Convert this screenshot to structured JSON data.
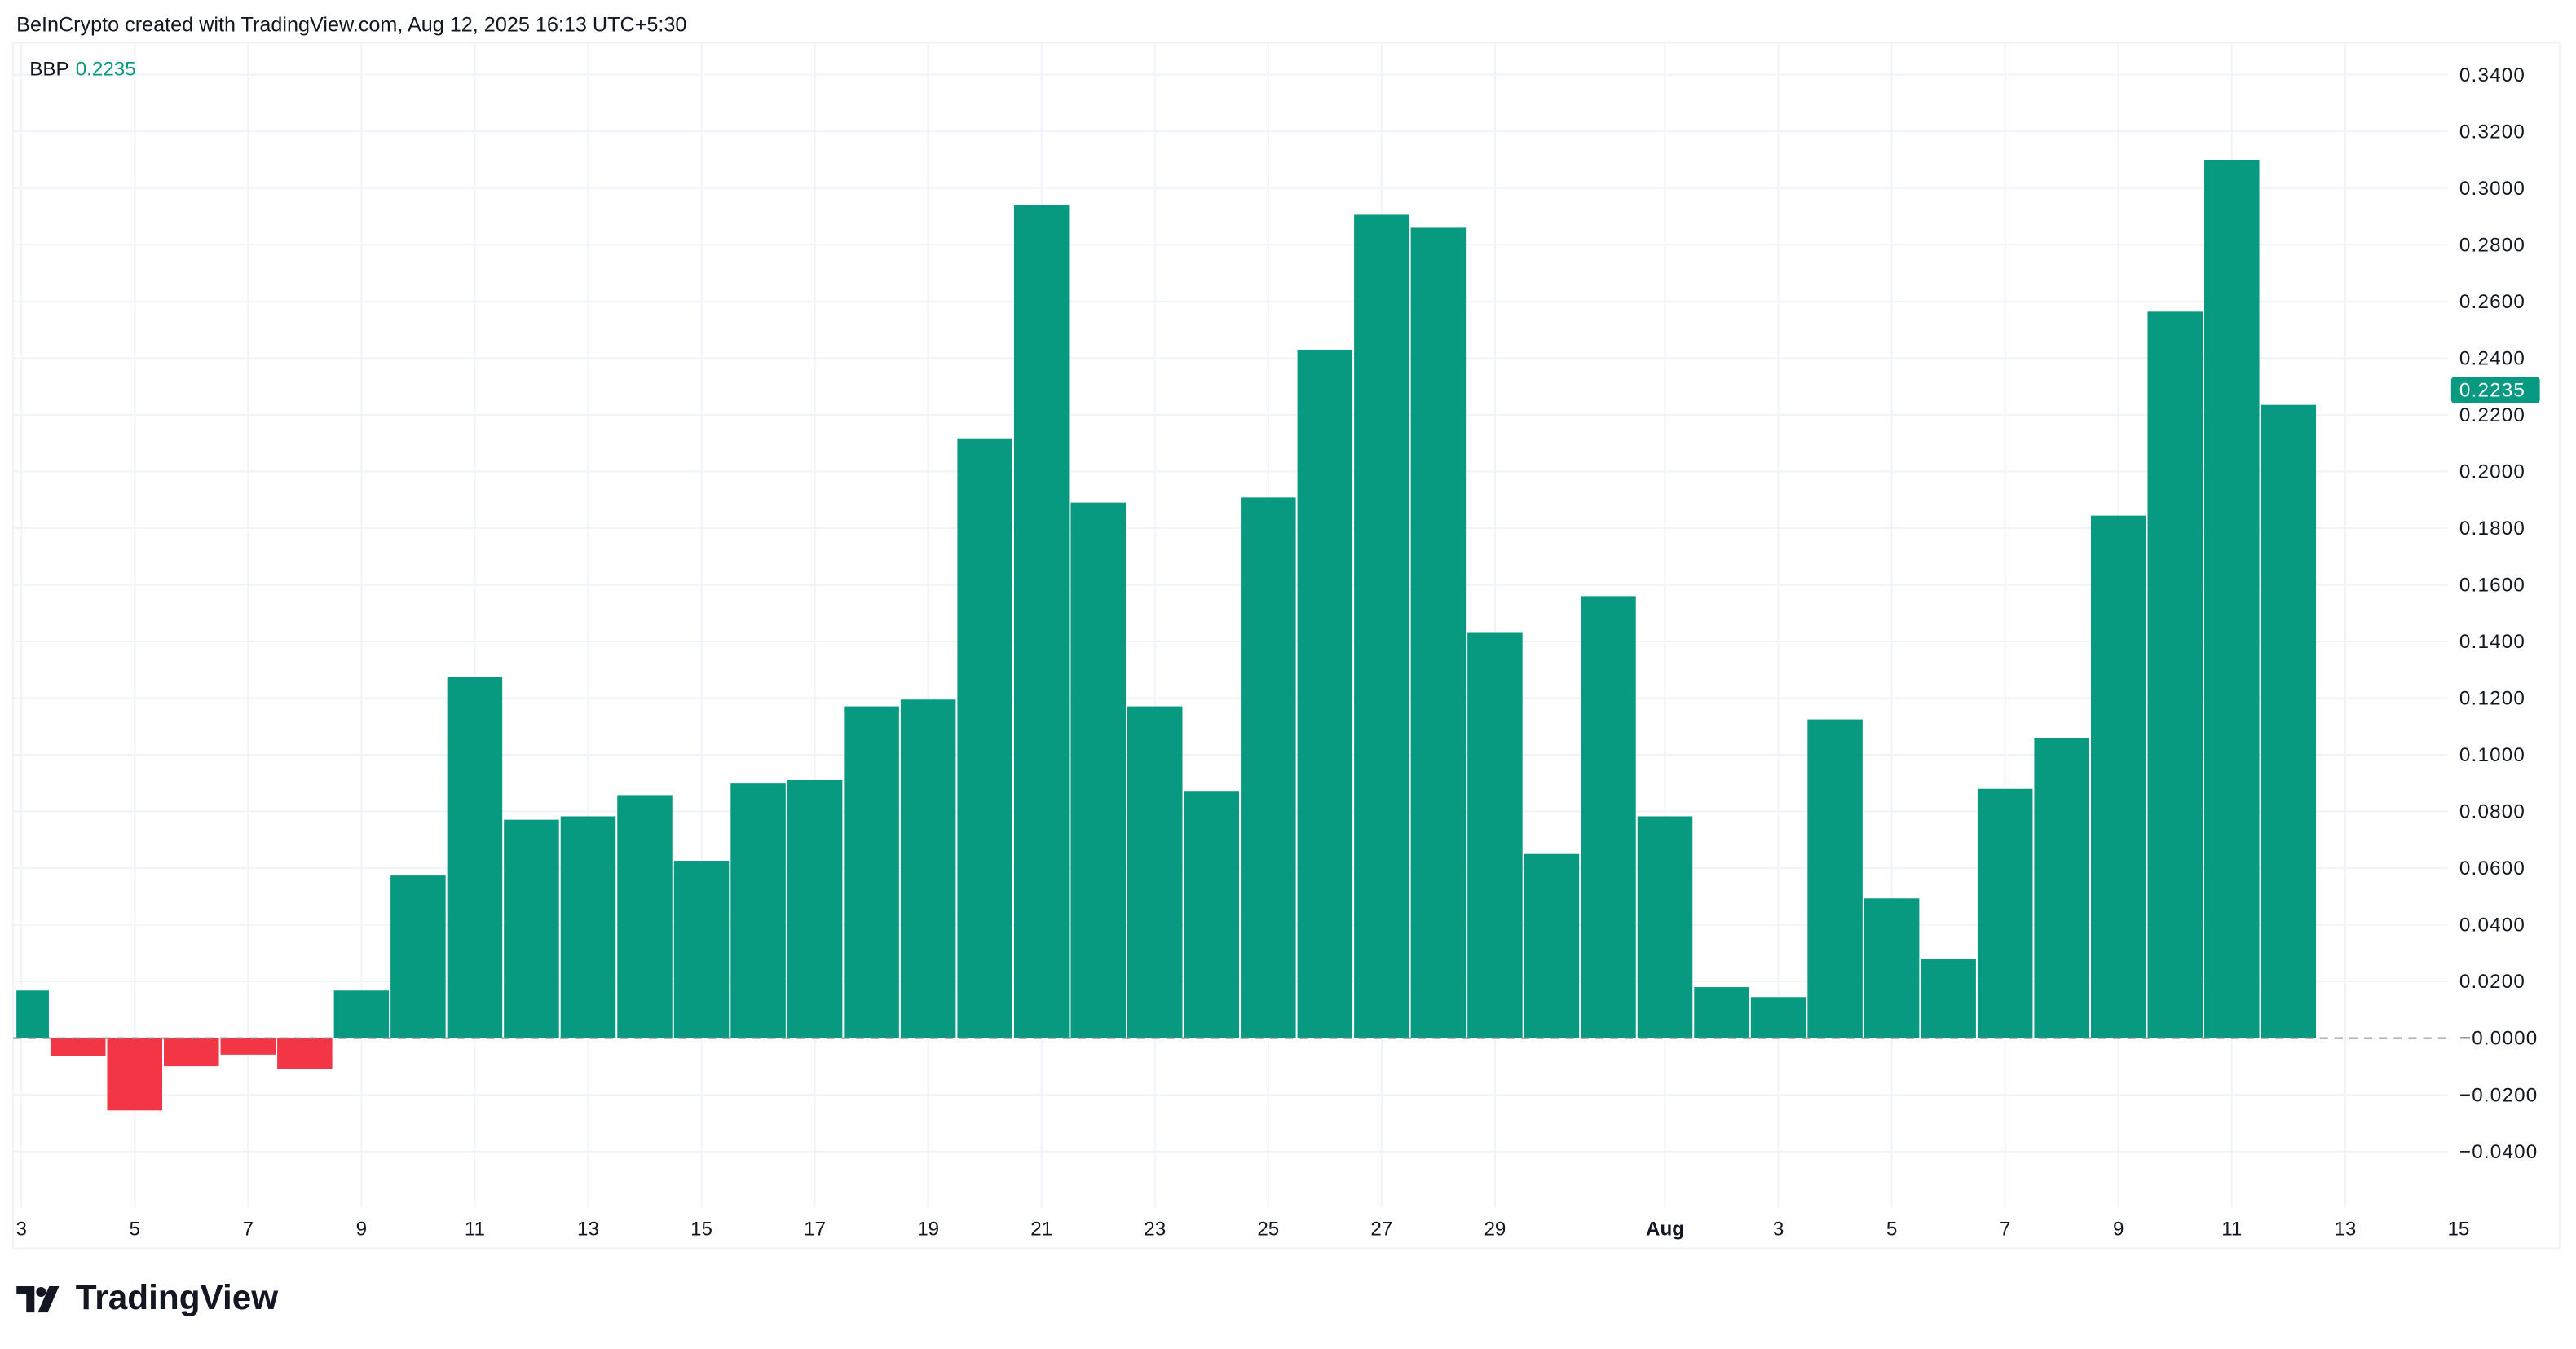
{
  "header": {
    "caption": "BeInCrypto created with TradingView.com, Aug 12, 2025 16:13 UTC+5:30"
  },
  "legend": {
    "name": "BBP",
    "value": "0.2235"
  },
  "brand": {
    "logo_text": "TradingView"
  },
  "colors": {
    "positive": "#089981",
    "negative": "#f23645",
    "grid": "#f0f3fa",
    "zero_line": "#888888"
  },
  "chart_data": {
    "type": "bar",
    "title": "",
    "series": [
      {
        "name": "BBP",
        "values": [
          0.0168,
          -0.0064,
          -0.0255,
          -0.0099,
          -0.0058,
          -0.011,
          0.0168,
          0.0574,
          0.1276,
          0.0771,
          0.0783,
          0.0858,
          0.0626,
          0.0899,
          0.0911,
          0.1171,
          0.1195,
          0.2117,
          0.294,
          0.189,
          0.1171,
          0.087,
          0.1908,
          0.243,
          0.2906,
          0.286,
          0.1433,
          0.065,
          0.156,
          0.0783,
          0.018,
          0.0145,
          0.1125,
          0.0493,
          0.0278,
          0.088,
          0.106,
          0.1844,
          0.2564,
          0.31,
          0.2235
        ]
      }
    ],
    "categories": [
      "Jul 3",
      "Jul 4",
      "Jul 5",
      "Jul 6",
      "Jul 7",
      "Jul 8",
      "Jul 9",
      "Jul 10",
      "Jul 11",
      "Jul 12",
      "Jul 13",
      "Jul 14",
      "Jul 15",
      "Jul 16",
      "Jul 17",
      "Jul 18",
      "Jul 19",
      "Jul 20",
      "Jul 21",
      "Jul 22",
      "Jul 23",
      "Jul 24",
      "Jul 25",
      "Jul 26",
      "Jul 27",
      "Jul 28",
      "Jul 29",
      "Jul 30",
      "Jul 31",
      "Aug 1",
      "Aug 2",
      "Aug 3",
      "Aug 4",
      "Aug 5",
      "Aug 6",
      "Aug 7",
      "Aug 8",
      "Aug 9",
      "Aug 10",
      "Aug 11",
      "Aug 12"
    ],
    "x_ticks": [
      {
        "day": 0,
        "label": "3"
      },
      {
        "day": 2,
        "label": "5"
      },
      {
        "day": 4,
        "label": "7"
      },
      {
        "day": 6,
        "label": "9"
      },
      {
        "day": 8,
        "label": "11"
      },
      {
        "day": 10,
        "label": "13"
      },
      {
        "day": 12,
        "label": "15"
      },
      {
        "day": 14,
        "label": "17"
      },
      {
        "day": 16,
        "label": "19"
      },
      {
        "day": 18,
        "label": "21"
      },
      {
        "day": 20,
        "label": "23"
      },
      {
        "day": 22,
        "label": "25"
      },
      {
        "day": 24,
        "label": "27"
      },
      {
        "day": 26,
        "label": "29"
      },
      {
        "day": 29,
        "label": "Aug"
      },
      {
        "day": 31,
        "label": "3"
      },
      {
        "day": 33,
        "label": "5"
      },
      {
        "day": 35,
        "label": "7"
      },
      {
        "day": 37,
        "label": "9"
      },
      {
        "day": 39,
        "label": "11"
      },
      {
        "day": 41,
        "label": "13"
      },
      {
        "day": 43,
        "label": "15"
      }
    ],
    "y_ticks": [
      "0.3400",
      "0.3200",
      "0.3000",
      "0.2800",
      "0.2600",
      "0.2400",
      "0.2200",
      "0.2000",
      "0.1800",
      "0.1600",
      "0.1400",
      "0.1200",
      "0.1000",
      "0.0800",
      "0.0600",
      "0.0400",
      "0.0200",
      "−0.0000",
      "−0.0200",
      "−0.0400"
    ],
    "y_tick_values": [
      0.34,
      0.32,
      0.3,
      0.28,
      0.26,
      0.24,
      0.22,
      0.2,
      0.18,
      0.16,
      0.14,
      0.12,
      0.1,
      0.08,
      0.06,
      0.04,
      0.02,
      0,
      -0.02,
      -0.04
    ],
    "ylim": [
      -0.058,
      0.352
    ],
    "last_value_label": "0.2235",
    "grid": true,
    "legend_position": "top-left"
  }
}
